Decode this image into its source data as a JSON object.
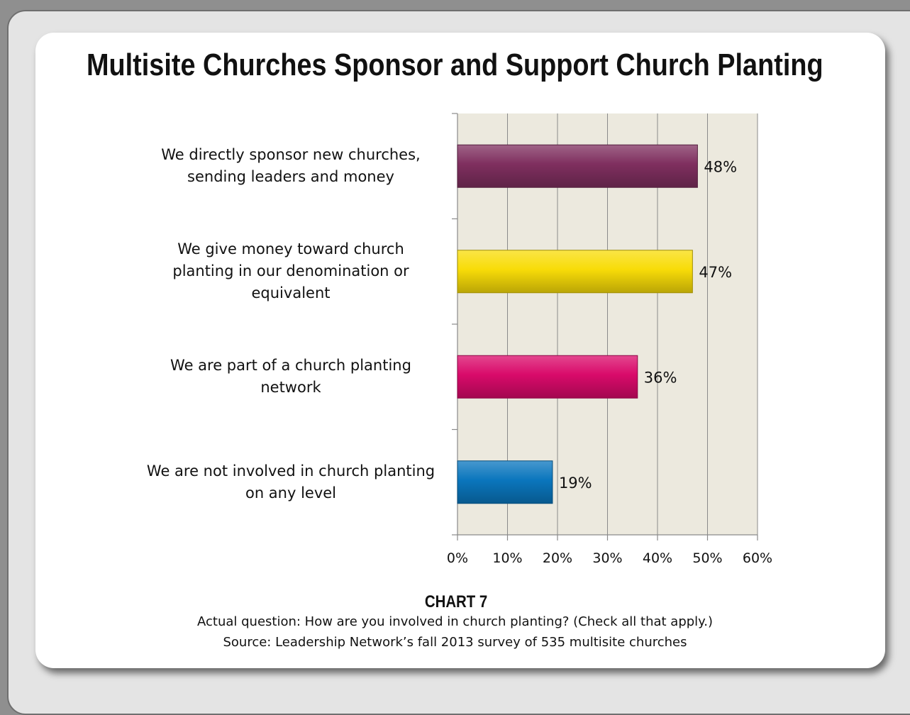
{
  "chart_data": {
    "type": "bar",
    "orientation": "horizontal",
    "title": "Multisite Churches Sponsor and Support Church Planting",
    "categories": [
      "We directly sponsor new churches, sending leaders and money",
      "We give money toward church planting in our denomination or equivalent",
      "We are part of a church planting network",
      "We are not involved in church planting on any level"
    ],
    "category_lines": [
      [
        "We directly sponsor new churches,",
        "sending leaders and money"
      ],
      [
        "We give money toward church",
        "planting in our denomination or",
        "equivalent"
      ],
      [
        "We are part of a church planting",
        "network"
      ],
      [
        "We are not involved in church planting",
        "on any level"
      ]
    ],
    "values": [
      48,
      47,
      36,
      19
    ],
    "data_labels": [
      "48%",
      "47%",
      "36%",
      "19%"
    ],
    "bar_colors": [
      "#7f2f5f",
      "#f8dc08",
      "#d90a6a",
      "#0a76bd"
    ],
    "xlim": [
      0,
      60
    ],
    "xticks": [
      0,
      10,
      20,
      30,
      40,
      50,
      60
    ],
    "xtick_labels": [
      "0%",
      "10%",
      "20%",
      "30%",
      "40%",
      "50%",
      "60%"
    ],
    "xlabel": "",
    "ylabel": "",
    "grid": true,
    "plot_background": "#ece9de",
    "legend": "none"
  },
  "caption": {
    "chart_number": "CHART 7",
    "question": "Actual question: How are you involved in church planting? (Check all that apply.)",
    "source": "Source: Leadership Network’s fall 2013 survey of 535 multisite churches"
  }
}
